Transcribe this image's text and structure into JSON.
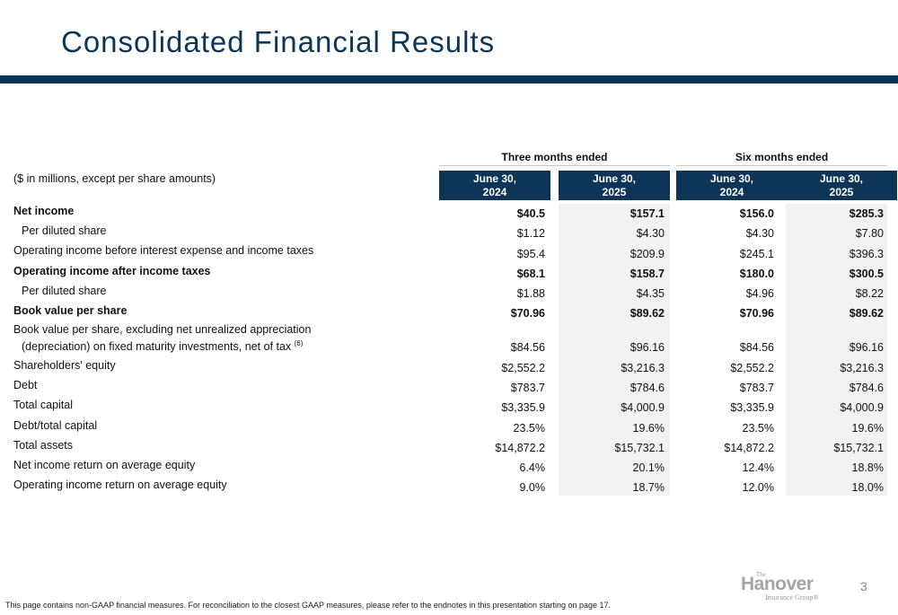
{
  "title": "Consolidated Financial Results",
  "units_note": "($ in millions, except per share amounts)",
  "groups": {
    "three_months": "Three months ended",
    "six_months": "Six months ended"
  },
  "columns": [
    {
      "line1": "June 30,",
      "line2": "2024"
    },
    {
      "line1": "June 30,",
      "line2": "2025"
    },
    {
      "line1": "June 30,",
      "line2": "2024"
    },
    {
      "line1": "June 30,",
      "line2": "2025"
    }
  ],
  "rows": [
    {
      "label": "Net income",
      "values": [
        "$40.5",
        "$157.1",
        "$156.0",
        "$285.3"
      ]
    },
    {
      "label": "Per diluted share",
      "values": [
        "$1.12",
        "$4.30",
        "$4.30",
        "$7.80"
      ]
    },
    {
      "label": "Operating income before interest expense and income taxes",
      "values": [
        "$95.4",
        "$209.9",
        "$245.1",
        "$396.3"
      ]
    },
    {
      "label": "Operating income after income taxes",
      "values": [
        "$68.1",
        "$158.7",
        "$180.0",
        "$300.5"
      ]
    },
    {
      "label": "Per diluted share",
      "values": [
        "$1.88",
        "$4.35",
        "$4.96",
        "$8.22"
      ]
    },
    {
      "label": "Book value per share",
      "values": [
        "$70.96",
        "$89.62",
        "$70.96",
        "$89.62"
      ]
    },
    {
      "label": "Book value per share, excluding net unrealized appreciation",
      "label_line2": "(depreciation) on fixed maturity investments, net of tax",
      "footnote_ref": "(6)",
      "values": [
        "$84.56",
        "$96.16",
        "$84.56",
        "$96.16"
      ]
    },
    {
      "label": "Shareholders' equity",
      "values": [
        "$2,552.2",
        "$3,216.3",
        "$2,552.2",
        "$3,216.3"
      ]
    },
    {
      "label": "Debt",
      "values": [
        "$783.7",
        "$784.6",
        "$783.7",
        "$784.6"
      ]
    },
    {
      "label": "Total capital",
      "values": [
        "$3,335.9",
        "$4,000.9",
        "$3,335.9",
        "$4,000.9"
      ]
    },
    {
      "label": "Debt/total capital",
      "values": [
        "23.5%",
        "19.6%",
        "23.5%",
        "19.6%"
      ]
    },
    {
      "label": "Total assets",
      "values": [
        "$14,872.2",
        "$15,732.1",
        "$14,872.2",
        "$15,732.1"
      ]
    },
    {
      "label": "Net income return on average equity",
      "values": [
        "6.4%",
        "20.1%",
        "12.4%",
        "18.8%"
      ]
    },
    {
      "label": "Operating income return on average equity",
      "values": [
        "9.0%",
        "18.7%",
        "12.0%",
        "18.0%"
      ]
    }
  ],
  "footer": {
    "note": "This page contains non-GAAP financial measures. For reconciliation to the closest GAAP measures, please refer to the endnotes in this presentation starting on page 17.",
    "page_number": "3",
    "logo": {
      "the": "The",
      "name": "Hanover",
      "sub": "Insurance Group®"
    }
  },
  "colors": {
    "brand_navy": "#0d3558",
    "shade": "#f2f2f2"
  }
}
